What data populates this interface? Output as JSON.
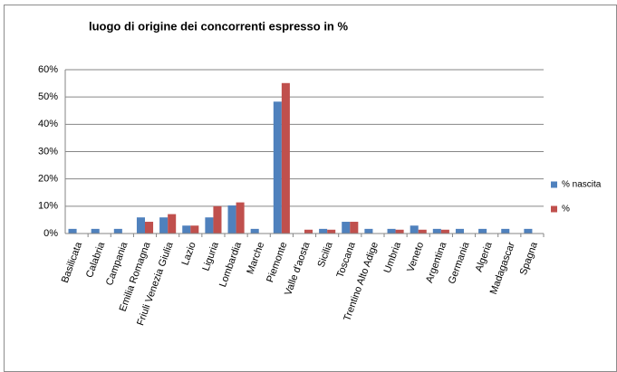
{
  "chart_data": {
    "type": "bar",
    "title": "luogo di origine dei concorrenti  espresso in %",
    "categories": [
      "Basilicata",
      "Calabria",
      "Campania",
      "Emilia Romagna",
      "Friuli Venezia Giulia",
      "Lazio",
      "Liguria",
      "Lombardia",
      "Marche",
      "Piemonte",
      "Valle d'aosta",
      "Sicilia",
      "Toscana",
      "Trentino Alto Adige",
      "Umbria",
      "Veneto",
      "Argentina",
      "Germania",
      "Algeria",
      "Madagascar",
      "Spagna"
    ],
    "series": [
      {
        "name": "% nascita",
        "color": "#4f81bd",
        "values": [
          1.7,
          1.7,
          1.7,
          5.9,
          5.9,
          2.9,
          5.9,
          10.3,
          1.7,
          48.3,
          0,
          1.7,
          4.3,
          1.7,
          1.7,
          2.9,
          1.7,
          1.7,
          1.7,
          1.7,
          1.7
        ]
      },
      {
        "name": "%",
        "color": "#c0504d",
        "values": [
          0,
          0,
          0,
          4.3,
          7.1,
          2.9,
          10,
          11.4,
          0,
          55.1,
          1.4,
          1.4,
          4.3,
          0,
          1.4,
          1.4,
          1.4,
          0,
          0,
          0,
          0
        ]
      }
    ],
    "ylim": [
      0,
      60
    ],
    "yticks": [
      {
        "value": 0,
        "label": "0%"
      },
      {
        "value": 10,
        "label": "10%"
      },
      {
        "value": 20,
        "label": "20%"
      },
      {
        "value": 30,
        "label": "30%"
      },
      {
        "value": 40,
        "label": "40%"
      },
      {
        "value": 50,
        "label": "50%"
      },
      {
        "value": 60,
        "label": "60%"
      }
    ],
    "grid": true,
    "legend": "right"
  }
}
